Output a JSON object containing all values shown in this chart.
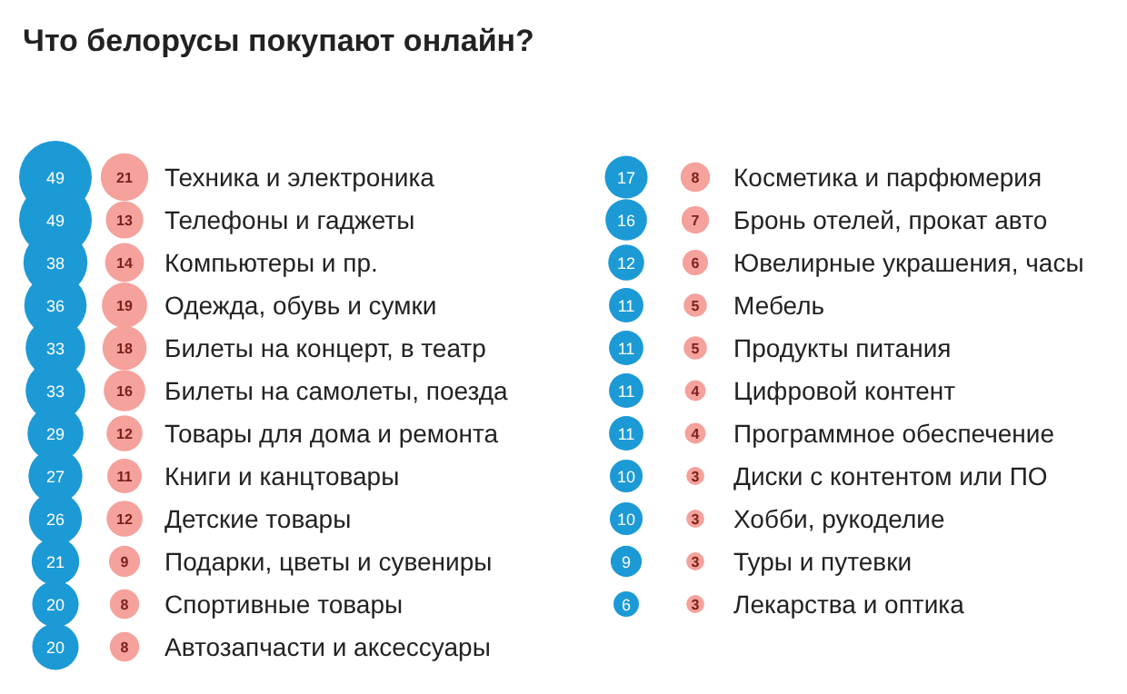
{
  "chart_data": {
    "type": "other",
    "title": "Что белорусы покупают онлайн?",
    "categories": [
      "Техника и электроника",
      "Телефоны и гаджеты",
      "Компьютеры и пр.",
      "Одежда, обувь и сумки",
      "Билеты на концерт, в театр",
      "Билеты на самолеты, поезда",
      "Товары для дома и ремонта",
      "Книги и канцтовары",
      "Детские товары",
      "Подарки, цветы и сувениры",
      "Спортивные товары",
      "Автозапчасти и аксессуары",
      "Косметика и парфюмерия",
      "Бронь отелей, прокат авто",
      "Ювелирные украшения, часы",
      "Мебель",
      "Продукты питания",
      "Цифровой контент",
      "Программное обеспечение",
      "Диски с контентом или ПО",
      "Хобби, рукоделие",
      "Туры и путевки",
      "Лекарства и оптика"
    ],
    "series": [
      {
        "color": "#1c9ad6",
        "values": [
          49,
          49,
          38,
          36,
          33,
          33,
          29,
          27,
          26,
          21,
          20,
          20,
          17,
          16,
          12,
          11,
          11,
          11,
          11,
          10,
          10,
          9,
          6
        ]
      },
      {
        "color": "#f5a19c",
        "values": [
          21,
          13,
          14,
          19,
          18,
          16,
          12,
          11,
          12,
          9,
          8,
          8,
          8,
          7,
          6,
          5,
          5,
          4,
          4,
          3,
          3,
          3,
          3
        ]
      }
    ],
    "data_labels": true
  }
}
